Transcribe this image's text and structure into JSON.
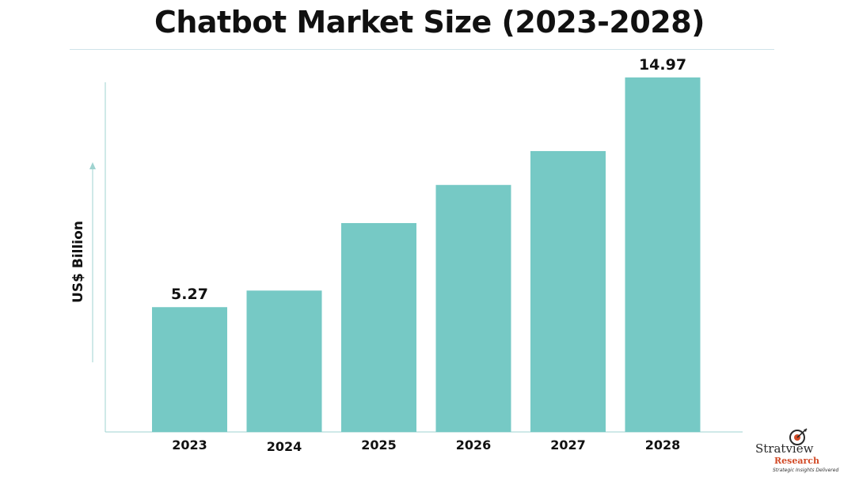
{
  "chart_data": {
    "type": "bar",
    "title": "Chatbot Market Size (2023-2028)",
    "xlabel": "",
    "ylabel": "US$ Billion",
    "categories": [
      "2023",
      "2024",
      "2025",
      "2026",
      "2027",
      "2028"
    ],
    "values": [
      5.27,
      5.97,
      8.82,
      10.43,
      11.86,
      14.97
    ],
    "data_labels": [
      "5.27",
      "",
      "",
      "",
      "",
      "14.97"
    ],
    "ylim": [
      0,
      15.5
    ],
    "grid": false,
    "legend": "none",
    "bar_color": "#76c9c5",
    "axis_color": "#9fd3d0"
  },
  "logo": {
    "name": "Stratview",
    "sub": "Research",
    "tagline": "Strategic Insights Delivered"
  }
}
